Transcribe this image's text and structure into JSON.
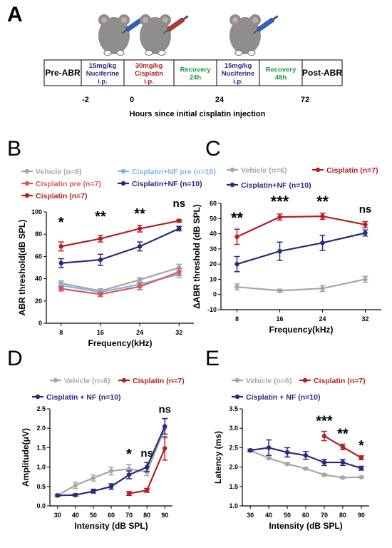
{
  "panel_a": {
    "letter": "A",
    "boxes": [
      {
        "lines": [
          "Pre-ABR"
        ],
        "color": "#000000"
      },
      {
        "lines": [
          "15mg/kg",
          "Nuciferine",
          "i.p."
        ],
        "color": "#2e2a7a"
      },
      {
        "lines": [
          "30mg/kg",
          "Cisplatin",
          "i.p."
        ],
        "color": "#b01e1e"
      },
      {
        "lines": [
          "Recovery",
          "24h"
        ],
        "color": "#1f9a3c"
      },
      {
        "lines": [
          "15mg/kg",
          "Nuciferine",
          "i.p."
        ],
        "color": "#2e2a7a"
      },
      {
        "lines": [
          "Recovery",
          "48h"
        ],
        "color": "#1f9a3c"
      },
      {
        "lines": [
          "Post-ABR"
        ],
        "color": "#000000"
      }
    ],
    "time_ticks": [
      "-2",
      "0",
      "24",
      "72"
    ],
    "axis_label": "Hours since initial cisplatin injection",
    "syringe_colors": [
      "#2a63c9",
      "#c0352b",
      "#2a63c9"
    ]
  },
  "chart_data": [
    {
      "panel": "B",
      "type": "line",
      "ylabel": "ABR threshold(dB SPL)",
      "xlabel": "Frequency(kHz)",
      "categories": [
        "8",
        "16",
        "24",
        "32"
      ],
      "ylim": [
        0,
        100
      ],
      "yticks": [
        "0",
        "20",
        "40",
        "60",
        "80",
        "100"
      ],
      "legend": [
        {
          "name": "Vehicle (n=6)",
          "color": "#a6a6a6"
        },
        {
          "name": "Cisplatin+NF pre (n=10)",
          "color": "#7fb6ea"
        },
        {
          "name": "Cisplatin pre (n=7)",
          "color": "#d9575b"
        },
        {
          "name": "Cisplatin+NF (n=10)",
          "color": "#262b7e"
        },
        {
          "name": "Cisplatin (n=7)",
          "color": "#b31f24"
        }
      ],
      "series": [
        {
          "color": "#a6a6a6",
          "values": [
            36,
            29,
            39,
            50
          ],
          "err": [
            2,
            2,
            2,
            3
          ]
        },
        {
          "color": "#7fb6ea",
          "values": [
            34,
            28,
            35,
            44
          ],
          "err": [
            2,
            2,
            2,
            3
          ]
        },
        {
          "color": "#d9575b",
          "values": [
            31,
            26,
            33,
            46
          ],
          "err": [
            2,
            2,
            3,
            3
          ]
        },
        {
          "color": "#262b7e",
          "values": [
            54,
            57,
            69,
            85
          ],
          "err": [
            4,
            5,
            4,
            2
          ]
        },
        {
          "color": "#b31f24",
          "values": [
            69,
            76,
            85,
            92
          ],
          "err": [
            4,
            3,
            3,
            1
          ]
        }
      ],
      "annotations": [
        "*",
        "**",
        "**",
        "ns"
      ]
    },
    {
      "panel": "C",
      "type": "line",
      "ylabel": "ΔABR threshold (dB SPL)",
      "xlabel": "Frequency(kHz)",
      "categories": [
        "8",
        "16",
        "24",
        "32"
      ],
      "ylim": [
        -10,
        60
      ],
      "yticks": [
        "-10",
        "0",
        "10",
        "20",
        "30",
        "40",
        "50",
        "60"
      ],
      "legend": [
        {
          "name": "Vehicle (n=6)",
          "color": "#a6a6a6"
        },
        {
          "name": "Cisplatin  (n=7)",
          "color": "#b31f24"
        },
        {
          "name": "Cisplatin+NF (n=10)",
          "color": "#262b7e"
        }
      ],
      "series": [
        {
          "color": "#a6a6a6",
          "values": [
            5,
            2.5,
            4,
            10
          ],
          "err": [
            2,
            1,
            2,
            2
          ]
        },
        {
          "color": "#262b7e",
          "values": [
            20,
            28.5,
            34,
            40.5
          ],
          "err": [
            5,
            6,
            5,
            2
          ]
        },
        {
          "color": "#b31f24",
          "values": [
            38,
            51,
            51.5,
            46
          ],
          "err": [
            5,
            2,
            2,
            2
          ]
        }
      ],
      "annotations": [
        "**",
        "***",
        "**",
        "ns"
      ]
    },
    {
      "panel": "D",
      "type": "line",
      "ylabel": "Amplitude(μV)",
      "xlabel": "Intensity (dB SPL)",
      "categories": [
        "30",
        "40",
        "50",
        "60",
        "70",
        "80",
        "90"
      ],
      "ylim": [
        0,
        2.5
      ],
      "yticks": [
        "0.0",
        "0.5",
        "1.0",
        "1.5",
        "2.0",
        "2.5"
      ],
      "legend": [
        {
          "name": "Vehicle  (n=6)",
          "color": "#a6a6a6"
        },
        {
          "name": "Cisplatin (n=7)",
          "color": "#b31f24"
        },
        {
          "name": "Cisplatin + NF (n=10)",
          "color": "#262b7e"
        }
      ],
      "series": [
        {
          "color": "#a6a6a6",
          "values": [
            0.27,
            0.53,
            0.72,
            0.9,
            0.95,
            0.88,
            2.0
          ],
          "err": [
            0.03,
            0.08,
            0.08,
            0.1,
            0.12,
            0.1,
            0.25
          ]
        },
        {
          "color": "#262b7e",
          "values": [
            0.27,
            0.28,
            0.38,
            0.5,
            0.8,
            1.0,
            2.05
          ],
          "err": [
            0.02,
            0.03,
            0.05,
            0.07,
            0.1,
            0.12,
            0.2
          ]
        },
        {
          "color": "#b31f24",
          "values": [
            null,
            null,
            null,
            null,
            0.32,
            0.4,
            1.48
          ],
          "err": [
            0,
            0,
            0,
            0,
            0.05,
            0.05,
            0.3
          ]
        }
      ],
      "annotations": [
        {
          "x": "70",
          "text": "*"
        },
        {
          "x": "80",
          "text": "ns"
        },
        {
          "x": "90",
          "text": "ns"
        }
      ]
    },
    {
      "panel": "E",
      "type": "line",
      "ylabel": "Latency (ms)",
      "xlabel": "Intensity (dB SPL)",
      "categories": [
        "30",
        "40",
        "50",
        "60",
        "70",
        "80",
        "90"
      ],
      "ylim": [
        1.0,
        3.5
      ],
      "yticks": [
        "1.0",
        "1.5",
        "2.0",
        "2.5",
        "3.0",
        "3.5"
      ],
      "legend": [
        {
          "name": "Vehicle  (n=6)",
          "color": "#a6a6a6"
        },
        {
          "name": "Cisplatin (n=7)",
          "color": "#b31f24"
        },
        {
          "name": "Cisplatin + NF (n=10)",
          "color": "#262b7e"
        }
      ],
      "series": [
        {
          "color": "#a6a6a6",
          "values": [
            2.43,
            2.23,
            2.08,
            1.96,
            1.8,
            1.73,
            1.74
          ],
          "err": [
            0.03,
            0.03,
            0.03,
            0.03,
            0.03,
            0.02,
            0.02
          ]
        },
        {
          "color": "#262b7e",
          "values": [
            2.43,
            2.5,
            2.38,
            2.3,
            2.12,
            2.12,
            1.97
          ],
          "err": [
            0.03,
            0.2,
            0.12,
            0.1,
            0.08,
            0.08,
            0.05
          ]
        },
        {
          "color": "#b31f24",
          "values": [
            null,
            null,
            null,
            null,
            2.8,
            2.52,
            2.24
          ],
          "err": [
            0,
            0,
            0,
            0,
            0.12,
            0.07,
            0.05
          ]
        }
      ],
      "annotations": [
        {
          "x": "70",
          "text": "***"
        },
        {
          "x": "80",
          "text": "**"
        },
        {
          "x": "90",
          "text": "*"
        }
      ]
    }
  ]
}
